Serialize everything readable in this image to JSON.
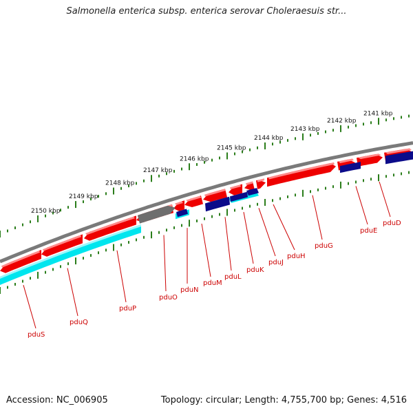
{
  "title": "Salmonella enterica subsp. enterica serovar Choleraesuis str...",
  "footer": {
    "accession": "Accession: NC_006905",
    "stats": "Topology: circular; Length: 4,755,700 bp; Genes: 4,516"
  },
  "colors": {
    "background": "#ffffff",
    "backbone": "#7a7a7a",
    "scale_ticks": "#2a7d1a",
    "gene_red": "#ee0000",
    "gene_cyan": "#00e5ee",
    "gene_navy": "#0b0b8a",
    "gene_gray": "#6e6e6e",
    "label_red": "#cc0000"
  },
  "scale": {
    "unit": "kbp",
    "labels": [
      "2150 kbp",
      "2149 kbp",
      "2148 kbp",
      "2147 kbp",
      "2146 kbp",
      "2145 kbp",
      "2144 kbp",
      "2143 kbp",
      "2142 kbp",
      "2141 kbp"
    ]
  },
  "genes": [
    {
      "name": "pduS",
      "track": "forward",
      "color": "gene_red"
    },
    {
      "name": "pduQ",
      "track": "forward",
      "color": "gene_red"
    },
    {
      "name": "pduP",
      "track": "forward",
      "color": "gene_red"
    },
    {
      "name": "pduO",
      "track": "forward",
      "color": "gene_gray"
    },
    {
      "name": "pduN",
      "track": "forward",
      "color": "gene_red"
    },
    {
      "name": "pduM",
      "track": "forward",
      "color": "gene_red"
    },
    {
      "name": "pduL",
      "track": "forward",
      "color": "gene_red"
    },
    {
      "name": "pduK",
      "track": "forward",
      "color": "gene_red"
    },
    {
      "name": "pduJ",
      "track": "forward",
      "color": "gene_red"
    },
    {
      "name": "pduH",
      "track": "forward",
      "color": "gene_red"
    },
    {
      "name": "pduG",
      "track": "forward",
      "color": "gene_red"
    },
    {
      "name": "pduE",
      "track": "forward",
      "color": "gene_red"
    },
    {
      "name": "pduD",
      "track": "forward",
      "color": "gene_red"
    }
  ]
}
